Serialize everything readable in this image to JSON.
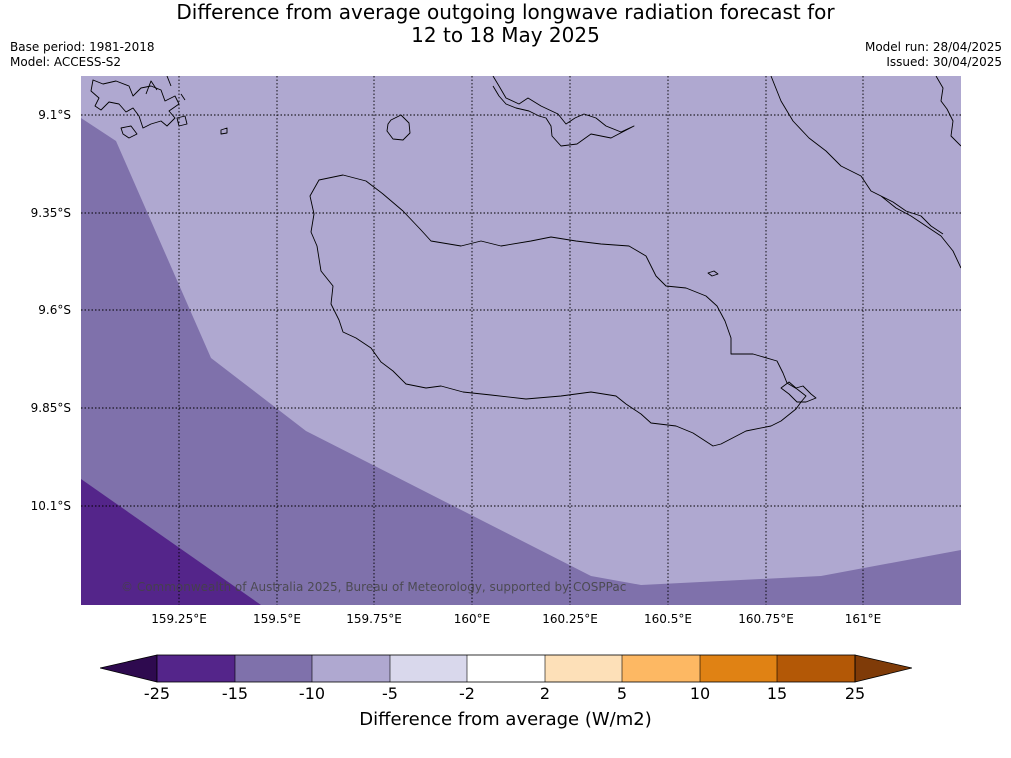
{
  "title_line1": "Difference from average outgoing longwave radiation forecast for",
  "title_line2": "12 to 18 May 2025",
  "base_period": "Base period: 1981-2018",
  "model": "Model: ACCESS-S2",
  "model_run": "Model run: 28/04/2025",
  "issued": "Issued: 30/04/2025",
  "lat_labels": [
    "9.1°S",
    "9.35°S",
    "9.6°S",
    "9.85°S",
    "10.1°S"
  ],
  "lon_labels": [
    "159.25°E",
    "159.5°E",
    "159.75°E",
    "160°E",
    "160.25°E",
    "160.5°E",
    "160.75°E",
    "161°E"
  ],
  "copyright": "© Commonwealth of Australia 2025, Bureau of Meteorology, supported by COSPPac",
  "colorbar": {
    "ticks": [
      "-25",
      "-15",
      "-10",
      "-5",
      "-2",
      "2",
      "5",
      "10",
      "15",
      "25"
    ],
    "colors": [
      "#2e0a4f",
      "#54258a",
      "#7f71ab",
      "#afa8d0",
      "#d9d8ec",
      "#ffffff",
      "#fde0b8",
      "#fdb863",
      "#e08214",
      "#b35806",
      "#7f3b08"
    ],
    "label": "Difference from average (W/m2)"
  },
  "map_colors": {
    "band_minus5_to_minus10": "#afa8d0",
    "band_minus10_to_minus15": "#7f71ab",
    "band_minus15_to_minus25": "#54258a"
  }
}
